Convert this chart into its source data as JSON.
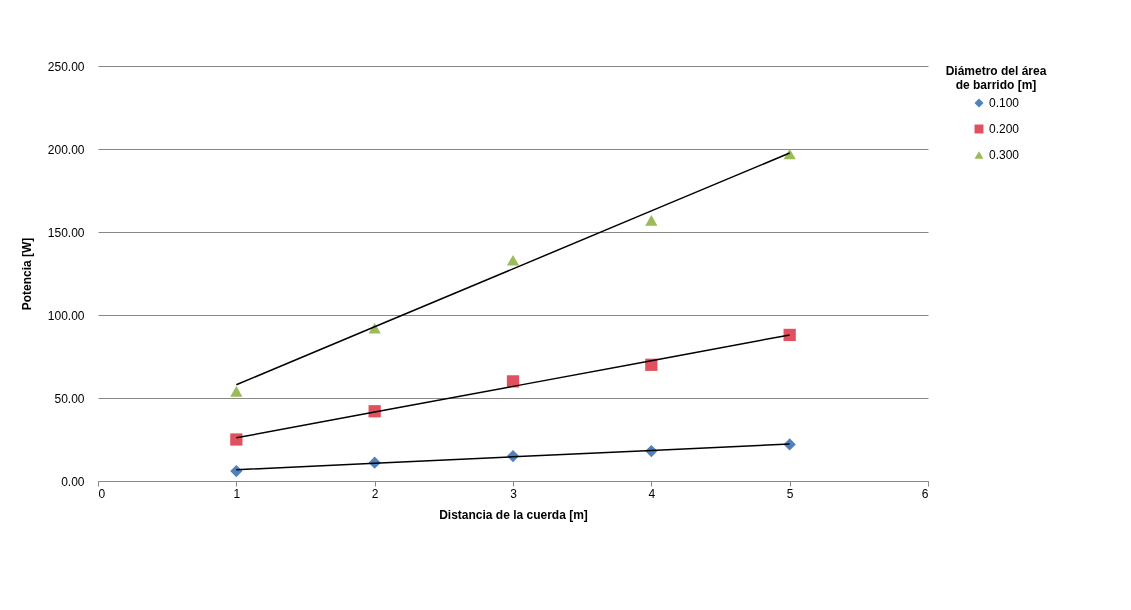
{
  "chart_data": {
    "type": "scatter",
    "xlabel": "Distancia de la cuerda [m]",
    "ylabel": "Potencia [W]",
    "legend_title": "Diámetro del área de barrido [m]",
    "x": [
      1,
      2,
      3,
      4,
      5
    ],
    "series": [
      {
        "name": "0.100",
        "color": "#4f81bd",
        "marker": "diamond",
        "values": [
          6,
          11,
          15,
          18,
          22
        ]
      },
      {
        "name": "0.200",
        "color": "#e0505e",
        "marker": "square",
        "values": [
          25,
          42,
          60,
          70,
          88
        ]
      },
      {
        "name": "0.300",
        "color": "#9bbb59",
        "marker": "triangle",
        "values": [
          54,
          92,
          133,
          157,
          197
        ]
      },
      {
        "type": "line",
        "color": "#000000",
        "marker": "none",
        "values": [
          6.8,
          10.7,
          14.6,
          18.4,
          22.3
        ]
      },
      {
        "type": "line",
        "color": "#000000",
        "marker": "none",
        "values": [
          26,
          41.5,
          57,
          72.5,
          88
        ]
      },
      {
        "type": "line",
        "color": "#000000",
        "marker": "none",
        "values": [
          58,
          92.9,
          127.8,
          162.7,
          197.6
        ]
      }
    ],
    "xlim": [
      0,
      6
    ],
    "xticks": [
      0,
      1,
      2,
      3,
      4,
      5,
      6
    ],
    "ylim": [
      0,
      250
    ],
    "yticks": [
      {
        "value": 0,
        "label": "0.00"
      },
      {
        "value": 50,
        "label": "50.00"
      },
      {
        "value": 100,
        "label": "100.00"
      },
      {
        "value": 150,
        "label": "150.00"
      },
      {
        "value": 200,
        "label": "200.00"
      },
      {
        "value": 250,
        "label": "250.00"
      }
    ],
    "grid": "y",
    "legend": "right"
  }
}
